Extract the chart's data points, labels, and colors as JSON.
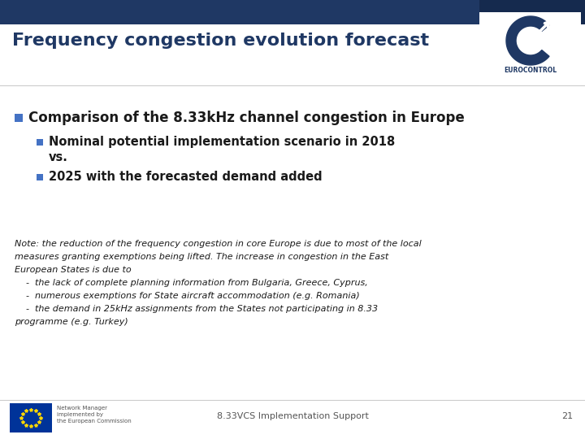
{
  "title": "Frequency congestion evolution forecast",
  "title_color": "#1f3864",
  "title_fontsize": 16,
  "background_color": "#ffffff",
  "header_bar_color": "#1f3864",
  "header_bar_height": 0.055,
  "logo_box_color": "#ffffff",
  "bullet_color": "#4472c4",
  "main_bullet": "Comparison of the 8.33kHz channel congestion in Europe",
  "main_bullet_fontsize": 12,
  "sub_bullet_fontsize": 10.5,
  "sub_bullet1_line1": "Nominal potential implementation scenario in 2018",
  "sub_bullet1_line2": "vs.",
  "sub_bullet2": "2025 with the forecasted demand added",
  "note_line1": "Note: the reduction of the frequency congestion in core Europe is due to most of the local",
  "note_line2": "measures granting exemptions being lifted. The increase in congestion in the East",
  "note_line3": "European States is due to",
  "note_line4": "    -  the lack of complete planning information from Bulgaria, Greece, Cyprus,",
  "note_line5": "    -  numerous exemptions for State aircraft accommodation (e.g. Romania)",
  "note_line6": "    -  the demand in 25kHz assignments from the States not participating in 8.33",
  "note_line7": "programme (e.g. Turkey)",
  "note_fontsize": 8,
  "footer_text": "8.33VCS Implementation Support",
  "footer_page": "21",
  "footer_color": "#555555",
  "footer_fontsize": 8,
  "eurocontrol_color": "#1f3864",
  "eurocontrol_text": "EUROCONTROL"
}
